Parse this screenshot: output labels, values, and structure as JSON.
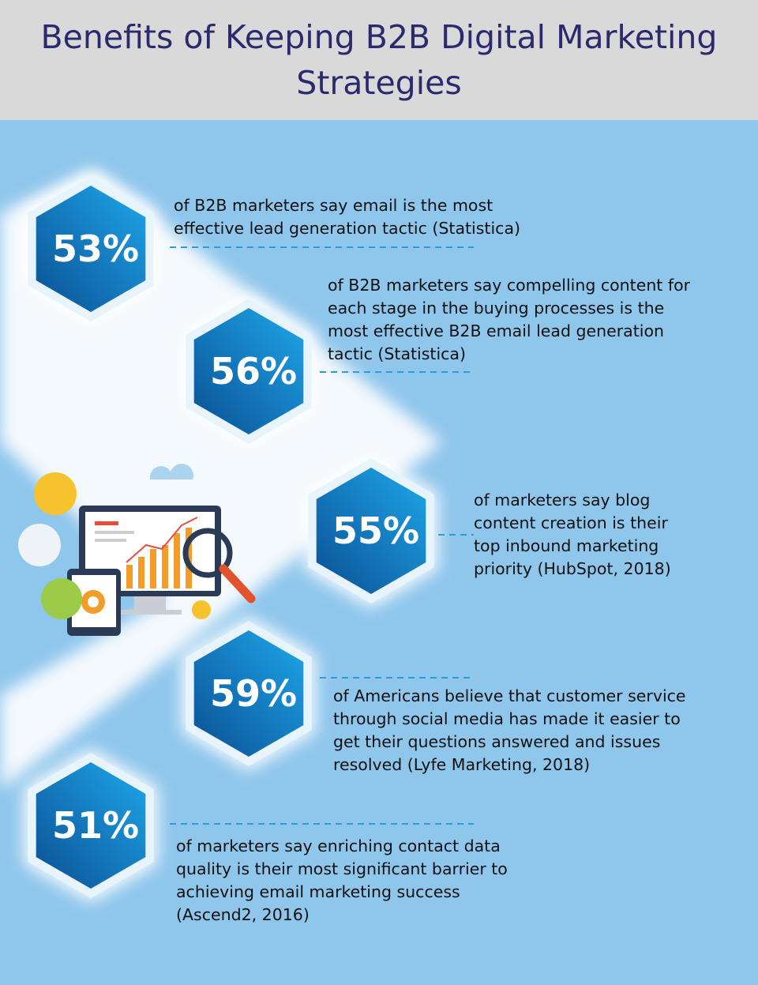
{
  "header": {
    "title": "Benefits of Keeping B2B Digital Marketing Strategies"
  },
  "stats": [
    {
      "value": "53%",
      "lines": [
        "of B2B marketers say email is the most",
        "effective lead generation tactic (Statistica)"
      ]
    },
    {
      "value": "56%",
      "lines": [
        "of B2B marketers say compelling content for",
        "each stage in the buying processes is the",
        "most effective B2B email lead generation",
        "tactic (Statistica)"
      ]
    },
    {
      "value": "55%",
      "lines": [
        "of marketers say blog",
        "content creation is their",
        "top inbound marketing",
        "priority (HubSpot, 2018)"
      ]
    },
    {
      "value": "59%",
      "lines": [
        "of Americans believe that customer service",
        "through social media has made it easier to",
        "get their questions answered and issues",
        "resolved (Lyfe Marketing, 2018)"
      ]
    },
    {
      "value": "51%",
      "lines": [
        "of marketers say enriching contact data",
        "quality is their most significant barrier to",
        "achieving email marketing success",
        "(Ascend2, 2016)"
      ]
    }
  ]
}
